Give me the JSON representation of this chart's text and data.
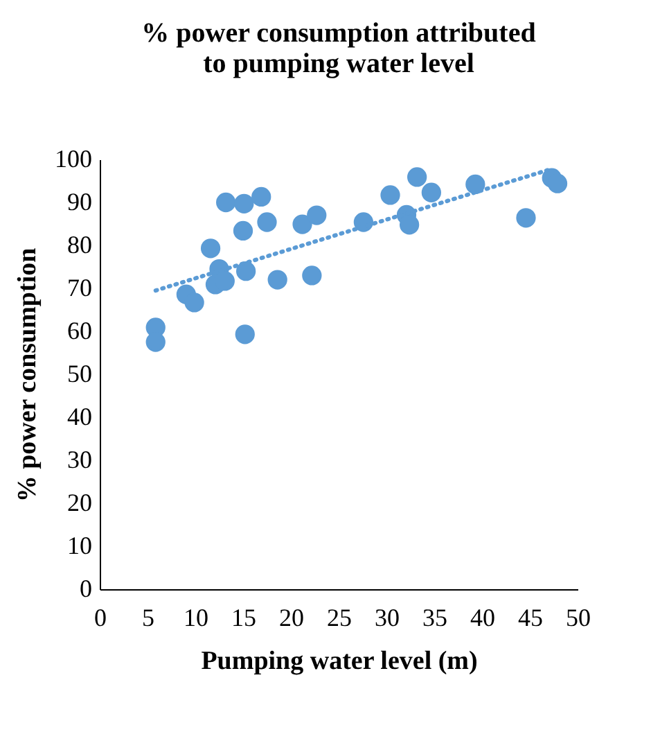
{
  "chart_data": {
    "type": "scatter",
    "title": [
      "% power consumption attributed",
      "to pumping water level"
    ],
    "xlabel": "Pumping water level (m)",
    "ylabel": "% power consumption",
    "xlim": [
      0,
      50
    ],
    "xticks": [
      0,
      5,
      10,
      15,
      20,
      25,
      30,
      35,
      40,
      45,
      50
    ],
    "ylim": [
      0,
      100
    ],
    "yticks": [
      0,
      10,
      20,
      30,
      40,
      50,
      60,
      70,
      80,
      90,
      100
    ],
    "grid": false,
    "marker": "circle",
    "series": [
      {
        "color": "#5b9bd5",
        "x": [
          5.85,
          5.85,
          9.05,
          9.9,
          11.6,
          12.1,
          12.5,
          13.1,
          13.2,
          15.1,
          16.9,
          15.0,
          17.5,
          15.3,
          15.2,
          18.6,
          21.2,
          22.7,
          22.2,
          27.6,
          30.4,
          33.2,
          34.7,
          32.1,
          32.4,
          39.3,
          44.6,
          47.3,
          47.9
        ],
        "values": [
          60.9,
          57.5,
          68.6,
          66.7,
          79.3,
          70.9,
          74.5,
          71.7,
          90.0,
          89.7,
          91.3,
          83.4,
          85.4,
          74.0,
          59.3,
          72.0,
          84.9,
          87.0,
          73.0,
          85.4,
          91.7,
          95.9,
          92.3,
          87.1,
          84.8,
          94.2,
          86.4,
          95.7,
          94.4
        ]
      },
      {
        "type": "line",
        "color": "#5b9bd5",
        "line_style": "dotted",
        "marker": "none",
        "x": [
          5.85,
          47.3
        ],
        "values": [
          69.5,
          97.8
        ]
      }
    ]
  }
}
